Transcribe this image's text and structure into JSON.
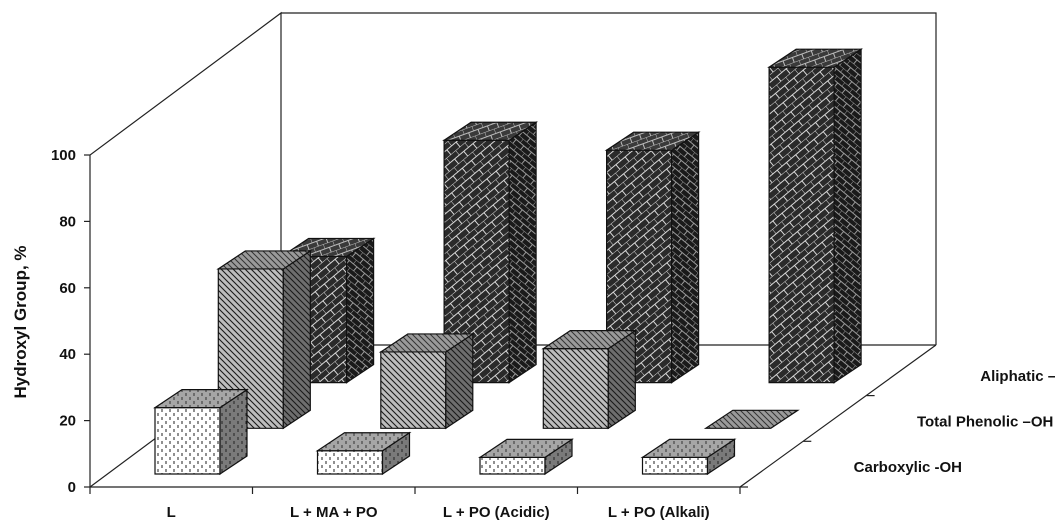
{
  "chart_data": {
    "type": "bar",
    "subtype": "3d-bar",
    "title": "",
    "xlabel": "",
    "ylabel": "Hydroxyl Group, %",
    "ylim": [
      0,
      100
    ],
    "yticks": [
      0,
      20,
      40,
      60,
      80,
      100
    ],
    "categories": [
      "L",
      "L + MA + PO",
      "L + PO (Acidic)",
      "L + PO (Alkali)"
    ],
    "series": [
      {
        "name": "Carboxylic -OH",
        "values": [
          20,
          7,
          5,
          5
        ],
        "color": "#ffffff",
        "pattern": "dots"
      },
      {
        "name": "Total Phenolic –OH",
        "values": [
          48,
          23,
          24,
          0
        ],
        "color": "#b0b0b0",
        "pattern": "diagonal"
      },
      {
        "name": "Aliphatic –OH",
        "values": [
          38,
          73,
          70,
          95
        ],
        "color": "#2b2b2b",
        "pattern": "brick"
      }
    ],
    "grid": false,
    "legend": "right"
  }
}
